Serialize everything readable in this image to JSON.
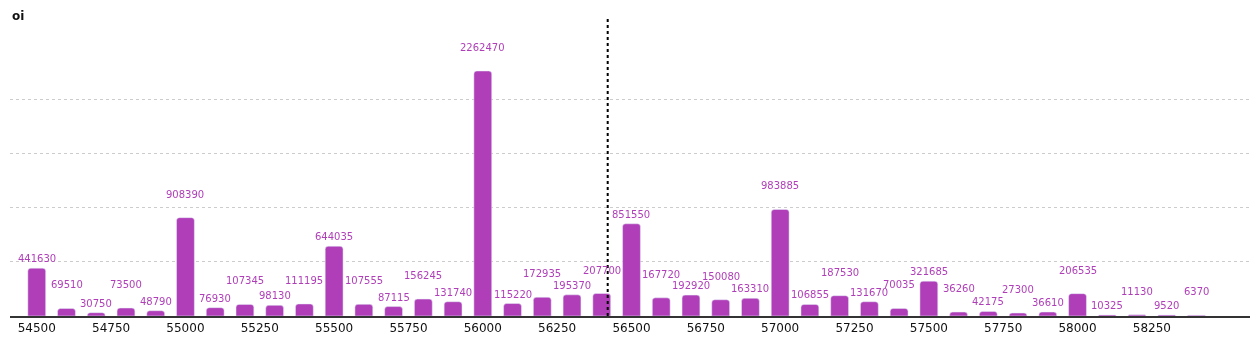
{
  "chart_data": {
    "type": "bar",
    "ylabel": "oi",
    "x": [
      54500,
      54600,
      54700,
      54800,
      54900,
      55000,
      55100,
      55200,
      55300,
      55400,
      55500,
      55600,
      55700,
      55800,
      55900,
      56000,
      56100,
      56200,
      56300,
      56400,
      56500,
      56600,
      56700,
      56800,
      56900,
      57000,
      57100,
      57200,
      57300,
      57400,
      57500,
      57600,
      57700,
      57800,
      57900,
      58000,
      58100,
      58200,
      58300,
      58400
    ],
    "values": [
      441630,
      69510,
      30750,
      73500,
      48790,
      908390,
      76930,
      107345,
      98130,
      111195,
      644035,
      107555,
      87115,
      156245,
      131740,
      2262470,
      115220,
      172935,
      195370,
      207700,
      851550,
      167720,
      192920,
      150080,
      163310,
      983885,
      106855,
      187530,
      131670,
      70035,
      321685,
      36260,
      42175,
      27300,
      36610,
      206535,
      10325,
      11130,
      9520,
      6370
    ],
    "color": "#b03eb9",
    "data_labels": true,
    "xlim": [
      54410,
      58580
    ],
    "xticks": [
      54500,
      54750,
      55000,
      55250,
      55500,
      55750,
      56000,
      56250,
      56500,
      56750,
      57000,
      57250,
      57500,
      57750,
      58000,
      58250
    ],
    "yticks": [
      {
        "value": 0,
        "label": null
      },
      {
        "value": 500000,
        "label": null
      },
      {
        "value": 1000000,
        "label": null
      },
      {
        "value": 1500000,
        "label": null
      },
      {
        "value": 2000000,
        "label": null
      }
    ],
    "grid": "y",
    "tick_labels": "x",
    "ref_lines": [
      {
        "axis": "x",
        "value": 56420,
        "label": null,
        "color": "#000000",
        "line_style": "dotted"
      }
    ]
  }
}
